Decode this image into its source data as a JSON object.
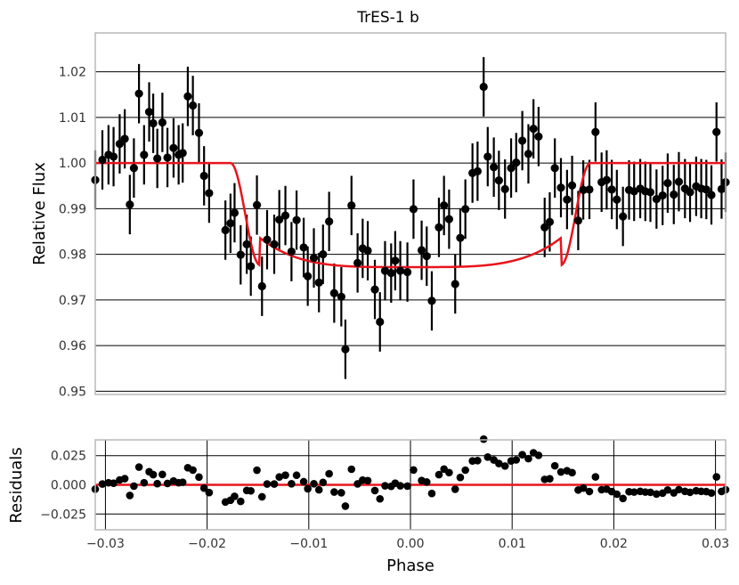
{
  "chart_data": [
    {
      "type": "scatter",
      "panel": "main",
      "title": "TrES-1 b",
      "xlabel": "",
      "ylabel": "Relative Flux",
      "xlim": [
        -0.031,
        0.031
      ],
      "ylim": [
        0.9493,
        1.0285
      ],
      "yticks": [
        "0.95",
        "0.96",
        "0.97",
        "0.98",
        "0.99",
        "1.00",
        "1.01",
        "1.02"
      ],
      "grid": "horizontal",
      "colors": {
        "points": "#000000",
        "model": "#e8141c",
        "grid": "#000000",
        "frame": "#b8b8b8"
      },
      "series": [
        {
          "x": [
            -0.031,
            -0.0303,
            -0.0297,
            -0.0292,
            -0.0286,
            -0.0281,
            -0.0276,
            -0.0272,
            -0.0267,
            -0.0262,
            -0.0257,
            -0.0253,
            -0.0249,
            -0.0244,
            -0.0239,
            -0.0233,
            -0.0228,
            -0.0224,
            -0.0219,
            -0.0214,
            -0.0208,
            -0.0203,
            -0.0198,
            -0.0182,
            -0.0177,
            -0.0173,
            -0.0167,
            -0.0161,
            -0.0157,
            -0.0151,
            -0.0146,
            -0.0141,
            -0.0134,
            -0.0129,
            -0.0123,
            -0.0117,
            -0.0112,
            -0.0105,
            -0.0101,
            -0.0095,
            -0.009,
            -0.0086,
            -0.008,
            -0.0075,
            -0.0068,
            -0.0064,
            -0.0058,
            -0.0052,
            -0.0047,
            -0.0042,
            -0.0035,
            -0.003,
            -0.0025,
            -0.0019,
            -0.0015,
            -0.001,
            -0.0003,
            0.0003,
            0.0011,
            0.0016,
            0.0021,
            0.0028,
            0.0033,
            0.0038,
            0.0044,
            0.0049,
            0.0054,
            0.0061,
            0.0066,
            0.0072,
            0.0076,
            0.0082,
            0.0087,
            0.0093,
            0.0099,
            0.0104,
            0.011,
            0.0116,
            0.0121,
            0.0126,
            0.0132,
            0.0137,
            0.0142,
            0.0148,
            0.0154,
            0.0159,
            0.0165,
            0.017,
            0.0176,
            0.0182,
            0.0188,
            0.0193,
            0.0198,
            0.0203,
            0.0209,
            0.0215,
            0.022,
            0.0226,
            0.0231,
            0.0236,
            0.0242,
            0.0248,
            0.0253,
            0.0259,
            0.0264,
            0.027,
            0.0275,
            0.0281,
            0.0286,
            0.0291,
            0.0296,
            0.0301,
            0.0306,
            0.031
          ],
          "y": [
            0.9963,
            1.0007,
            1.0018,
            1.0014,
            1.0042,
            1.0053,
            0.9909,
            0.9989,
            1.0152,
            1.0018,
            1.0112,
            1.0087,
            1.001,
            1.0089,
            1.0012,
            1.0033,
            1.0018,
            1.0022,
            1.0146,
            1.0126,
            1.0066,
            0.9972,
            0.9934,
            0.9853,
            0.9868,
            0.9891,
            0.9799,
            0.9822,
            0.9774,
            0.9908,
            0.973,
            0.9832,
            0.9822,
            0.9876,
            0.9885,
            0.9806,
            0.9875,
            0.9815,
            0.9752,
            0.9792,
            0.9738,
            0.98,
            0.9872,
            0.9715,
            0.9707,
            0.9592,
            0.9907,
            0.9781,
            0.9813,
            0.9808,
            0.9723,
            0.9652,
            0.9764,
            0.9759,
            0.9786,
            0.9764,
            0.9761,
            0.9899,
            0.9809,
            0.9796,
            0.9698,
            0.9859,
            0.9907,
            0.9877,
            0.9735,
            0.9836,
            0.9899,
            0.9978,
            0.9982,
            1.0167,
            1.0014,
            0.9991,
            0.9962,
            0.9943,
            0.9989,
            1.0001,
            1.0049,
            1.002,
            1.0075,
            1.0058,
            0.9859,
            0.9871,
            0.9989,
            0.9946,
            0.992,
            0.9951,
            0.9874,
            0.9941,
            0.9942,
            1.0068,
            0.9958,
            0.9963,
            0.9942,
            0.992,
            0.9883,
            0.9941,
            0.9938,
            0.9944,
            0.9938,
            0.9936,
            0.9921,
            0.9929,
            0.9956,
            0.9931,
            0.9959,
            0.9944,
            0.9936,
            0.9949,
            0.9944,
            0.9942,
            0.993,
            1.0068,
            0.9943,
            0.9958
          ],
          "yerr": 0.0065
        }
      ],
      "model": {
        "name": "",
        "transit_center": 0.0,
        "depth": 0.0228,
        "ingress_start": 0.0177,
        "full_depth_at": 0.0148
      }
    },
    {
      "type": "scatter",
      "panel": "residuals",
      "title": "",
      "xlabel": "Phase",
      "ylabel": "Residuals",
      "xlim": [
        -0.031,
        0.031
      ],
      "ylim": [
        -0.0385,
        0.0385
      ],
      "xticks": [
        "−0.03",
        "−0.02",
        "−0.01",
        "0.00",
        "0.01",
        "0.02",
        "0.03"
      ],
      "yticks": [
        "0.025",
        "0.000",
        "−0.025"
      ],
      "grid": "both",
      "zero_line": 0.0
    }
  ]
}
